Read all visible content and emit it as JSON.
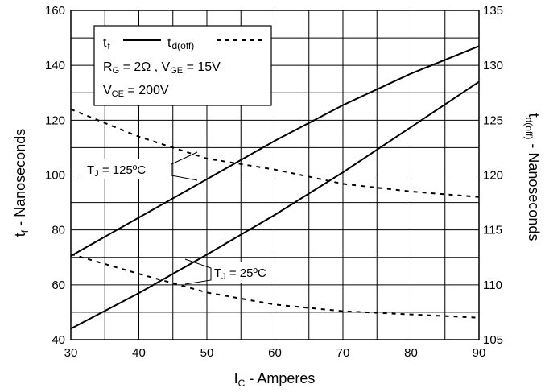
{
  "chart_data": {
    "type": "line",
    "xlabel": {
      "main": "I",
      "sub": "C",
      "rest": " - Amperes"
    },
    "ylabel_left": {
      "main": "t",
      "sub": "f",
      "rest": " - Nanoseconds"
    },
    "ylabel_right": {
      "main": "t",
      "sub": "d(off)",
      "rest": " - Nanoseconds"
    },
    "xlim": [
      30,
      90
    ],
    "ylim_left": [
      40,
      160
    ],
    "ylim_right": [
      105,
      135
    ],
    "x_ticks": [
      "30",
      "40",
      "50",
      "60",
      "70",
      "80",
      "90"
    ],
    "y_left_ticks": [
      "40",
      "60",
      "80",
      "100",
      "120",
      "140",
      "160"
    ],
    "y_right_ticks": [
      "105",
      "110",
      "115",
      "120",
      "125",
      "130",
      "135"
    ],
    "grid": true,
    "legend": {
      "position": "top-left",
      "tf_label": {
        "main": "t",
        "sub": "f"
      },
      "tdoff_label": {
        "main": "t",
        "sub": "d(off)"
      },
      "condition_1": {
        "a": "R",
        "a_sub": "G",
        "a_rest": " = 2Ω ,  V",
        "b_sub": "GE",
        "b_rest": " = 15V"
      },
      "condition_2": {
        "main": "V",
        "sub": "CE",
        "rest": " = 200V"
      }
    },
    "annotations": [
      {
        "main": "T",
        "sub": "J",
        "rest": " = 125ºC"
      },
      {
        "main": "T",
        "sub": "J",
        "rest": " = 25ºC"
      }
    ],
    "series": [
      {
        "axis": "left",
        "style": "solid",
        "x": [
          30,
          40,
          50,
          60,
          70,
          80,
          90
        ],
        "y": [
          70.5,
          84.5,
          98.5,
          112.5,
          125.5,
          137,
          147
        ]
      },
      {
        "axis": "left",
        "style": "solid",
        "x": [
          30,
          40,
          50,
          60,
          70,
          80,
          90
        ],
        "y": [
          44,
          57,
          71,
          85.5,
          101,
          117.5,
          134
        ]
      },
      {
        "axis": "right",
        "style": "dashed",
        "x": [
          30,
          40,
          50,
          60,
          70,
          80,
          90
        ],
        "y": [
          126,
          123.5,
          121.5,
          120.5,
          119.2,
          118.5,
          118
        ]
      },
      {
        "axis": "right",
        "style": "dashed",
        "x": [
          30,
          40,
          50,
          60,
          70,
          80,
          90
        ],
        "y": [
          112.8,
          111,
          109.3,
          108.2,
          107.6,
          107.3,
          107
        ]
      }
    ]
  }
}
